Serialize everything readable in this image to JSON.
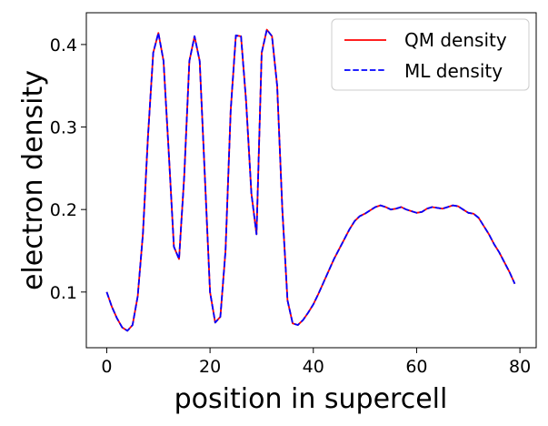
{
  "chart_data": {
    "type": "line",
    "xlabel": "position in supercell",
    "ylabel": "electron density",
    "xlim": [
      -3.95,
      83.15
    ],
    "ylim": [
      0.0325,
      0.4385
    ],
    "xticks": [
      0,
      20,
      40,
      60,
      80
    ],
    "yticks": [
      0.1,
      0.2,
      0.3,
      0.4
    ],
    "xtick_labels": [
      "0",
      "20",
      "40",
      "60",
      "80"
    ],
    "ytick_labels": [
      "0.1",
      "0.2",
      "0.3",
      "0.4"
    ],
    "grid": false,
    "legend_position": "top-right",
    "series": [
      {
        "name": "QM density",
        "color": "#ff0000",
        "style": "solid",
        "x": [
          0,
          1,
          2,
          3,
          4,
          5,
          6,
          7,
          8,
          9,
          10,
          11,
          12,
          13,
          14,
          15,
          16,
          17,
          18,
          19,
          20,
          21,
          22,
          23,
          24,
          25,
          26,
          27,
          28,
          29,
          30,
          31,
          32,
          33,
          34,
          35,
          36,
          37,
          38,
          39,
          40,
          41,
          42,
          43,
          44,
          45,
          46,
          47,
          48,
          49,
          50,
          51,
          52,
          53,
          54,
          55,
          56,
          57,
          58,
          59,
          60,
          61,
          62,
          63,
          64,
          65,
          66,
          67,
          68,
          69,
          70,
          71,
          72,
          73,
          74,
          75,
          76,
          77,
          78,
          79
        ],
        "y": [
          0.1,
          0.082,
          0.068,
          0.057,
          0.053,
          0.06,
          0.095,
          0.17,
          0.29,
          0.39,
          0.414,
          0.38,
          0.27,
          0.155,
          0.14,
          0.24,
          0.38,
          0.41,
          0.38,
          0.24,
          0.1,
          0.063,
          0.07,
          0.15,
          0.32,
          0.411,
          0.41,
          0.33,
          0.22,
          0.17,
          0.39,
          0.418,
          0.41,
          0.35,
          0.2,
          0.09,
          0.062,
          0.06,
          0.066,
          0.075,
          0.085,
          0.098,
          0.112,
          0.126,
          0.14,
          0.152,
          0.164,
          0.176,
          0.186,
          0.192,
          0.195,
          0.199,
          0.203,
          0.205,
          0.203,
          0.2,
          0.201,
          0.203,
          0.2,
          0.198,
          0.196,
          0.197,
          0.201,
          0.203,
          0.202,
          0.201,
          0.203,
          0.205,
          0.204,
          0.2,
          0.196,
          0.195,
          0.19,
          0.18,
          0.17,
          0.158,
          0.148,
          0.136,
          0.124,
          0.11
        ]
      },
      {
        "name": "ML density",
        "color": "#0000ff",
        "style": "dashed",
        "x": [
          0,
          1,
          2,
          3,
          4,
          5,
          6,
          7,
          8,
          9,
          10,
          11,
          12,
          13,
          14,
          15,
          16,
          17,
          18,
          19,
          20,
          21,
          22,
          23,
          24,
          25,
          26,
          27,
          28,
          29,
          30,
          31,
          32,
          33,
          34,
          35,
          36,
          37,
          38,
          39,
          40,
          41,
          42,
          43,
          44,
          45,
          46,
          47,
          48,
          49,
          50,
          51,
          52,
          53,
          54,
          55,
          56,
          57,
          58,
          59,
          60,
          61,
          62,
          63,
          64,
          65,
          66,
          67,
          68,
          69,
          70,
          71,
          72,
          73,
          74,
          75,
          76,
          77,
          78,
          79
        ],
        "y": [
          0.1,
          0.082,
          0.068,
          0.057,
          0.053,
          0.06,
          0.095,
          0.17,
          0.29,
          0.39,
          0.414,
          0.38,
          0.27,
          0.155,
          0.14,
          0.24,
          0.38,
          0.41,
          0.38,
          0.24,
          0.1,
          0.063,
          0.07,
          0.15,
          0.32,
          0.411,
          0.41,
          0.33,
          0.22,
          0.17,
          0.39,
          0.418,
          0.41,
          0.35,
          0.2,
          0.09,
          0.062,
          0.06,
          0.066,
          0.075,
          0.085,
          0.098,
          0.112,
          0.126,
          0.14,
          0.152,
          0.164,
          0.176,
          0.186,
          0.192,
          0.195,
          0.199,
          0.203,
          0.205,
          0.203,
          0.2,
          0.201,
          0.203,
          0.2,
          0.198,
          0.196,
          0.197,
          0.201,
          0.203,
          0.202,
          0.201,
          0.203,
          0.205,
          0.204,
          0.2,
          0.196,
          0.195,
          0.19,
          0.18,
          0.17,
          0.158,
          0.148,
          0.136,
          0.124,
          0.11
        ]
      }
    ]
  }
}
